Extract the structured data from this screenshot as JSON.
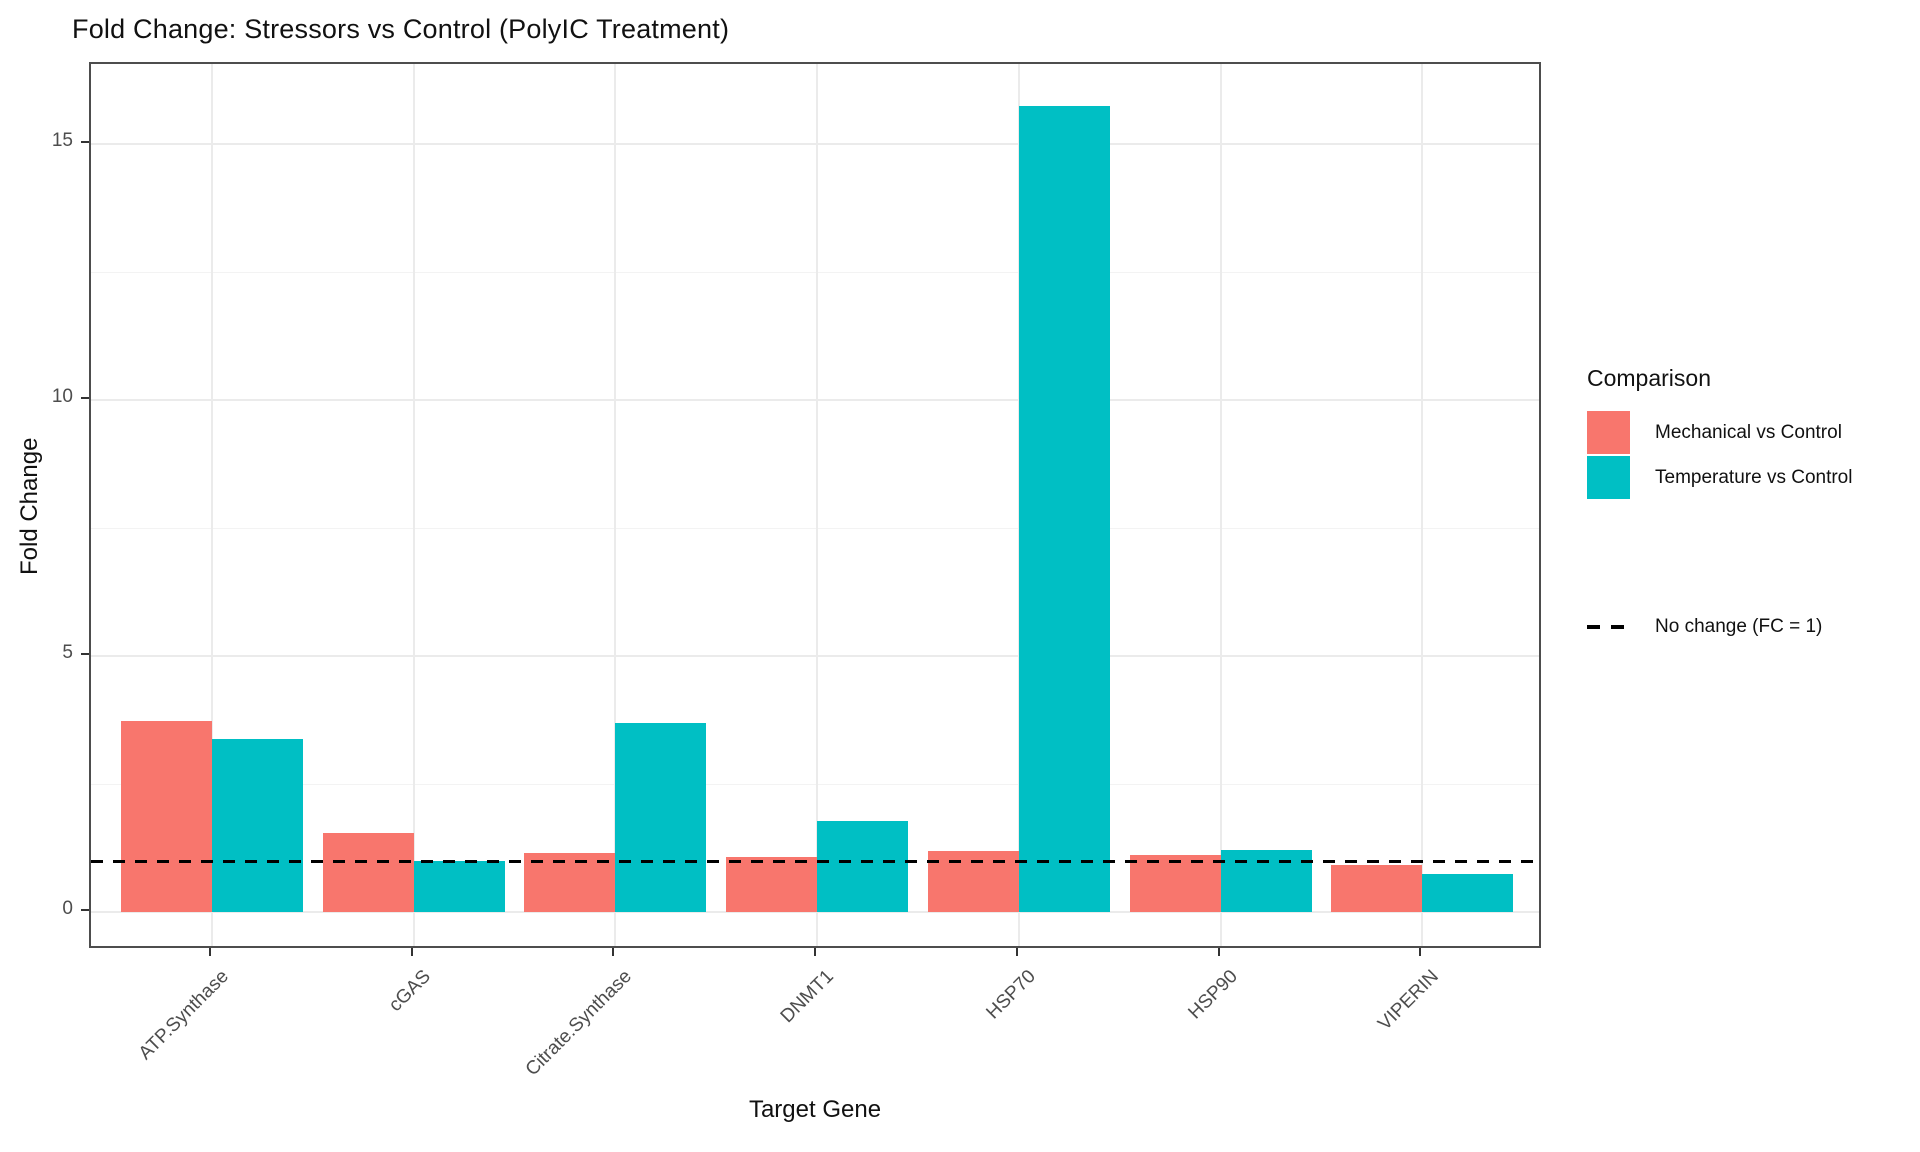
{
  "title": "Fold Change: Stressors vs Control (PolyIC Treatment)",
  "axes": {
    "x_title": "Target Gene",
    "y_title": "Fold Change",
    "y_ticks": [
      0,
      5,
      10,
      15
    ],
    "y_minor_ticks": [
      2.5,
      7.5,
      12.5
    ]
  },
  "legend": {
    "title": "Comparison",
    "items": [
      {
        "label": "Mechanical vs Control",
        "color": "#F8766D"
      },
      {
        "label": "Temperature vs Control",
        "color": "#00BFC4"
      }
    ],
    "line_item": {
      "label": "No change (FC = 1)"
    }
  },
  "colors": {
    "mechanical": "#F8766D",
    "temperature": "#00BFC4",
    "grid_major": "#ebebeb",
    "grid_minor": "#f3f3f3",
    "panel_border": "#4d4d4d",
    "axis_text": "#4d4d4d",
    "reference_line": "#000000"
  },
  "chart_data": {
    "type": "bar",
    "title": "Fold Change: Stressors vs Control (PolyIC Treatment)",
    "xlabel": "Target Gene",
    "ylabel": "Fold Change",
    "categories": [
      "ATP.Synthase",
      "cGAS",
      "Citrate.Synthase",
      "DNMT1",
      "HSP70",
      "HSP90",
      "VIPERIN"
    ],
    "series": [
      {
        "name": "Mechanical vs Control",
        "values": [
          3.73,
          1.55,
          1.15,
          1.07,
          1.2,
          1.11,
          0.91
        ]
      },
      {
        "name": "Temperature vs Control",
        "values": [
          3.37,
          1.0,
          3.7,
          1.78,
          15.75,
          1.21,
          0.74
        ]
      }
    ],
    "reference_line": {
      "value": 1,
      "label": "No change (FC = 1)",
      "style": "dashed"
    },
    "ylim": [
      -0.7,
      16.4
    ],
    "grid": "on",
    "legend_position": "right",
    "bar_layout": "dodged"
  }
}
